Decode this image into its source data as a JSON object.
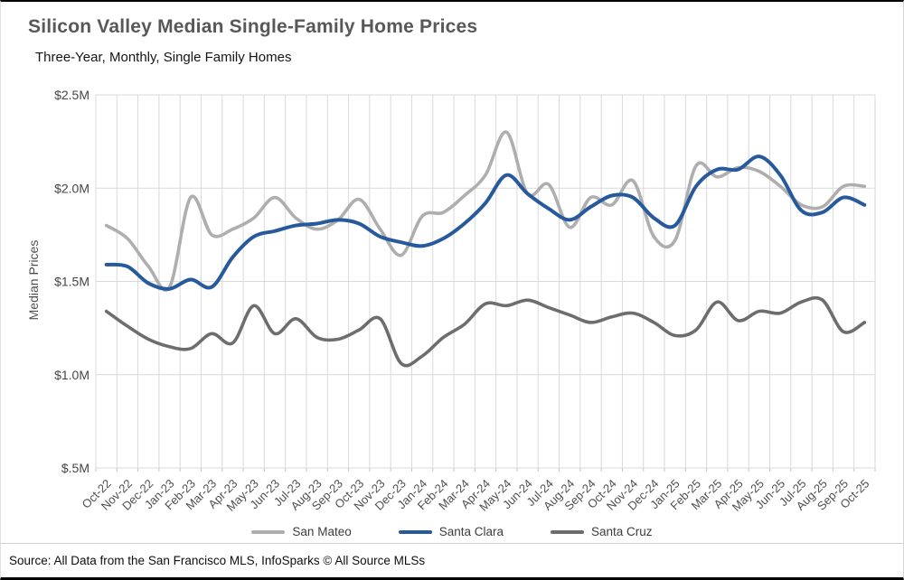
{
  "header": {
    "title": "Silicon Valley Median Single-Family Home Prices",
    "subtitle": "Three-Year, Monthly, Single Family Homes"
  },
  "chart_data": {
    "type": "line",
    "title": "Silicon Valley Median Single-Family Home Prices",
    "subtitle": "Three-Year, Monthly, Single Family Homes",
    "ylabel": "Median Prices",
    "xlabel": "",
    "ylim": [
      0.5,
      2.5
    ],
    "grid": true,
    "legend_position": "bottom",
    "unit": "USD millions",
    "y_ticks": [
      {
        "v": 2.5,
        "label": "$2.5M"
      },
      {
        "v": 2.0,
        "label": "$2.0M"
      },
      {
        "v": 1.5,
        "label": "$1.5M"
      },
      {
        "v": 1.0,
        "label": "$1.0M"
      },
      {
        "v": 0.5,
        "label": "$.5M"
      }
    ],
    "x": [
      "Oct-22",
      "Nov-22",
      "Dec-22",
      "Jan-23",
      "Feb-23",
      "Mar-23",
      "Apr-23",
      "May-23",
      "Jun-23",
      "Jul-23",
      "Aug-23",
      "Sep-23",
      "Oct-23",
      "Nov-23",
      "Dec-23",
      "Jan-24",
      "Feb-24",
      "Mar-24",
      "Apr-24",
      "May-24",
      "Jun-24",
      "Jul-24",
      "Aug-24",
      "Sep-24",
      "Oct-24",
      "Nov-24",
      "Dec-24",
      "Jan-25",
      "Feb-25",
      "Mar-25",
      "Apr-25",
      "May-25",
      "Jun-25",
      "Jul-25",
      "Aug-25",
      "Sep-25",
      "Oct-25"
    ],
    "series": [
      {
        "name": "San Mateo",
        "color": "#AEAEAE",
        "width": 3.6,
        "values": [
          1.8,
          1.73,
          1.58,
          1.47,
          1.95,
          1.75,
          1.78,
          1.84,
          1.95,
          1.84,
          1.78,
          1.83,
          1.94,
          1.78,
          1.64,
          1.85,
          1.87,
          1.96,
          2.07,
          2.3,
          1.97,
          2.02,
          1.79,
          1.95,
          1.91,
          2.04,
          1.74,
          1.72,
          2.12,
          2.06,
          2.11,
          2.09,
          2.01,
          1.91,
          1.9,
          2.01,
          2.01
        ]
      },
      {
        "name": "Santa Clara",
        "color": "#27599D",
        "width": 4.0,
        "values": [
          1.59,
          1.58,
          1.49,
          1.46,
          1.51,
          1.47,
          1.63,
          1.74,
          1.77,
          1.8,
          1.81,
          1.83,
          1.81,
          1.74,
          1.71,
          1.69,
          1.73,
          1.81,
          1.92,
          2.07,
          1.97,
          1.89,
          1.83,
          1.9,
          1.96,
          1.95,
          1.84,
          1.8,
          2.01,
          2.1,
          2.1,
          2.17,
          2.07,
          1.88,
          1.87,
          1.95,
          1.91
        ]
      },
      {
        "name": "Santa Cruz",
        "color": "#6D6D6D",
        "width": 3.6,
        "values": [
          1.34,
          1.26,
          1.19,
          1.15,
          1.14,
          1.22,
          1.17,
          1.37,
          1.22,
          1.3,
          1.2,
          1.19,
          1.24,
          1.3,
          1.06,
          1.1,
          1.2,
          1.27,
          1.38,
          1.37,
          1.4,
          1.36,
          1.32,
          1.28,
          1.31,
          1.33,
          1.28,
          1.21,
          1.24,
          1.39,
          1.29,
          1.34,
          1.33,
          1.39,
          1.4,
          1.23,
          1.28
        ]
      }
    ]
  },
  "footer": {
    "source": "Source: All Data from the San Francisco MLS, InfoSparks © All Source MLSs"
  }
}
